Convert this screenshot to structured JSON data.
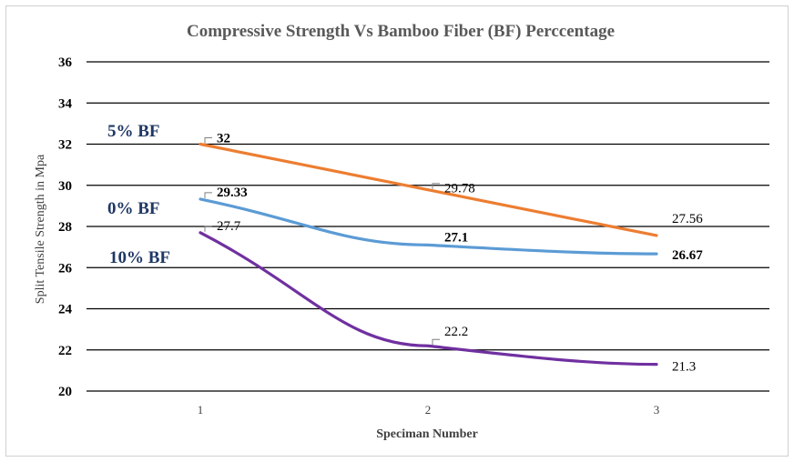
{
  "chart_data": {
    "type": "line",
    "title": "Compressive Strength Vs Bamboo Fiber (BF) Perccentage",
    "xlabel": "Speciman Number",
    "ylabel": "Split Tensile Strength in Mpa",
    "categories": [
      "1",
      "2",
      "3"
    ],
    "ylim": [
      20,
      36
    ],
    "yticks": [
      "20",
      "22",
      "24",
      "26",
      "28",
      "30",
      "32",
      "34",
      "36"
    ],
    "grid": true,
    "series": [
      {
        "name": "5% BF",
        "color": "#ed7d31",
        "values": [
          32,
          29.78,
          27.56
        ],
        "labels": [
          "32",
          "29.78",
          "27.56"
        ],
        "label_bold": [
          true,
          false,
          false
        ]
      },
      {
        "name": "0% BF",
        "color": "#5b9bd5",
        "values": [
          29.33,
          27.1,
          26.67
        ],
        "labels": [
          "29.33",
          "27.1",
          "26.67"
        ],
        "label_bold": [
          true,
          true,
          true
        ]
      },
      {
        "name": "10% BF",
        "color": "#7030a0",
        "values": [
          27.7,
          22.2,
          21.3
        ],
        "labels": [
          "27.7",
          "22.2",
          "21.3"
        ],
        "label_bold": [
          false,
          false,
          false
        ]
      }
    ]
  }
}
